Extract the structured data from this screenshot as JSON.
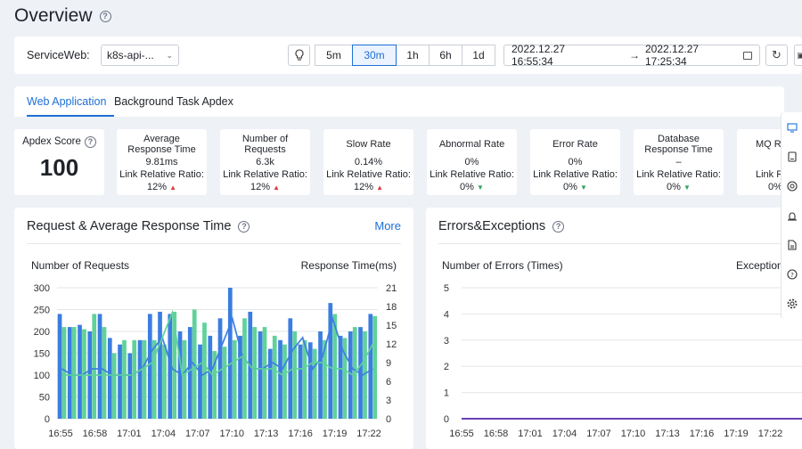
{
  "page": {
    "title": "Overview"
  },
  "toolbar": {
    "service_label": "ServiceWeb:",
    "service_value": "k8s-api-...",
    "ranges": [
      "5m",
      "30m",
      "1h",
      "6h",
      "1d"
    ],
    "active_range": "30m",
    "date_from": "2022.12.27 16:55:34",
    "date_to": "2022.12.27 17:25:34",
    "arrow": "→"
  },
  "tabs": [
    "Web Application",
    "Background Task Apdex"
  ],
  "apdex": {
    "label": "Apdex Score",
    "value": "100"
  },
  "metrics": [
    {
      "title": "Average Response Time",
      "value": "9.81ms",
      "ratio_label": "Link Relative Ratio:",
      "ratio": "12%",
      "trend": "up"
    },
    {
      "title": "Number of Requests",
      "value": "6.3k",
      "ratio_label": "Link Relative Ratio:",
      "ratio": "12%",
      "trend": "up"
    },
    {
      "title": "Slow Rate",
      "value": "0.14%",
      "ratio_label": "Link Relative Ratio:",
      "ratio": "12%",
      "trend": "up"
    },
    {
      "title": "Abnormal Rate",
      "value": "0%",
      "ratio_label": "Link Relative Ratio:",
      "ratio": "0%",
      "trend": "down"
    },
    {
      "title": "Error Rate",
      "value": "0%",
      "ratio_label": "Link Relative Ratio:",
      "ratio": "0%",
      "trend": "down"
    },
    {
      "title": "Database Response Time",
      "value": "–",
      "ratio_label": "Link Relative Ratio:",
      "ratio": "0%",
      "trend": "down"
    },
    {
      "title": "MQ Re",
      "value": "",
      "ratio_label": "Link Rela",
      "ratio": "0%",
      "trend": ""
    }
  ],
  "panel1": {
    "title": "Request & Average Response Time",
    "more": "More",
    "left_label": "Number of Requests",
    "right_label": "Response Time(ms)"
  },
  "panel2": {
    "title": "Errors&Exceptions",
    "left_label": "Number of Errors (Times)",
    "right_label": "Exception"
  },
  "colors": {
    "accent": "#1d6fd6",
    "blue_series": "#3b7de0",
    "green_series": "#5fd29a",
    "purple_series": "#6b3fb8"
  },
  "chart_data": [
    {
      "type": "bar",
      "title": "Request & Average Response Time",
      "ylabel": "Number of Requests",
      "y2label": "Response Time(ms)",
      "ylim": [
        0,
        300
      ],
      "y2lim": [
        0,
        21
      ],
      "yticks": [
        0,
        50,
        100,
        150,
        200,
        250,
        300
      ],
      "y2ticks": [
        0,
        3,
        6,
        9,
        12,
        15,
        18,
        21
      ],
      "xtick_labels": [
        "16:55",
        "16:58",
        "17:01",
        "17:04",
        "17:07",
        "17:10",
        "17:13",
        "17:16",
        "17:19",
        "17:22"
      ],
      "series": [
        {
          "type": "bar",
          "color": "#3b7de0",
          "values": [
            240,
            210,
            215,
            200,
            240,
            185,
            170,
            150,
            180,
            240,
            245,
            240,
            200,
            210,
            170,
            190,
            230,
            300,
            190,
            245,
            200,
            160,
            180,
            230,
            170,
            175,
            200,
            265,
            190,
            200,
            210,
            240
          ]
        },
        {
          "type": "bar",
          "color": "#5fd29a",
          "values": [
            210,
            210,
            205,
            240,
            210,
            150,
            180,
            180,
            180,
            180,
            170,
            245,
            180,
            250,
            220,
            155,
            165,
            180,
            230,
            210,
            210,
            190,
            170,
            200,
            180,
            160,
            180,
            240,
            185,
            210,
            200,
            235
          ]
        },
        {
          "type": "line",
          "color": "#3b7de0",
          "values": [
            8,
            7,
            7,
            8,
            8,
            7,
            7,
            7,
            8,
            11,
            13,
            8,
            7,
            9,
            7,
            8,
            12,
            16,
            10,
            8,
            8,
            9,
            8,
            11,
            13,
            8,
            10,
            16,
            11,
            8,
            7,
            8
          ]
        },
        {
          "type": "line",
          "color": "#5fd29a",
          "values": [
            7,
            7,
            7,
            7,
            7,
            7,
            7,
            7,
            8,
            9,
            13,
            17,
            7,
            8,
            9,
            7,
            8,
            9,
            10,
            8,
            8,
            8,
            7,
            8,
            8,
            9,
            9,
            8,
            8,
            7,
            9,
            12
          ]
        }
      ]
    },
    {
      "type": "line",
      "title": "Errors&Exceptions",
      "ylabel": "Number of Errors (Times)",
      "ylim": [
        0,
        5
      ],
      "yticks": [
        0,
        1,
        2,
        3,
        4,
        5
      ],
      "xtick_labels": [
        "16:55",
        "16:58",
        "17:01",
        "17:04",
        "17:07",
        "17:10",
        "17:13",
        "17:16",
        "17:19",
        "17:22"
      ],
      "series": [
        {
          "type": "line",
          "color": "#6b3fb8",
          "values": [
            0,
            0,
            0,
            0,
            0,
            0,
            0,
            0,
            0,
            0
          ]
        }
      ]
    }
  ]
}
